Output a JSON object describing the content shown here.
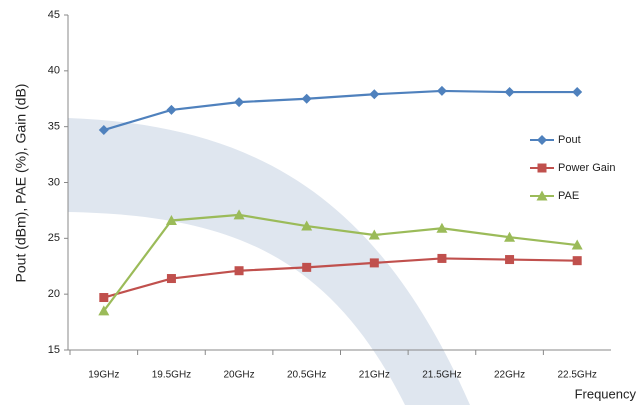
{
  "chart_data": {
    "type": "line",
    "y_label": "Pout (dBm), PAE (%), Gain (dB)",
    "x_label": "Frequency",
    "categories": [
      "19GHz",
      "19.5GHz",
      "20GHz",
      "20.5GHz",
      "21GHz",
      "21.5GHz",
      "22GHz",
      "22.5GHz"
    ],
    "series": [
      {
        "name": "Pout",
        "color": "#4f81bd",
        "marker": "diamond",
        "values": [
          34.7,
          36.5,
          37.2,
          37.5,
          37.9,
          38.2,
          38.1,
          38.1
        ]
      },
      {
        "name": "Power Gain",
        "color": "#c0504d",
        "marker": "square",
        "values": [
          19.7,
          21.4,
          22.1,
          22.4,
          22.8,
          23.2,
          23.1,
          23.0
        ]
      },
      {
        "name": "PAE",
        "color": "#9bbb59",
        "marker": "triangle",
        "values": [
          18.5,
          26.6,
          27.1,
          26.1,
          25.3,
          25.9,
          25.1,
          24.4
        ]
      }
    ],
    "ylim": [
      15,
      45
    ],
    "yticks": [
      15,
      20,
      25,
      30,
      35,
      40,
      45
    ],
    "grid": false,
    "legend": "right"
  }
}
